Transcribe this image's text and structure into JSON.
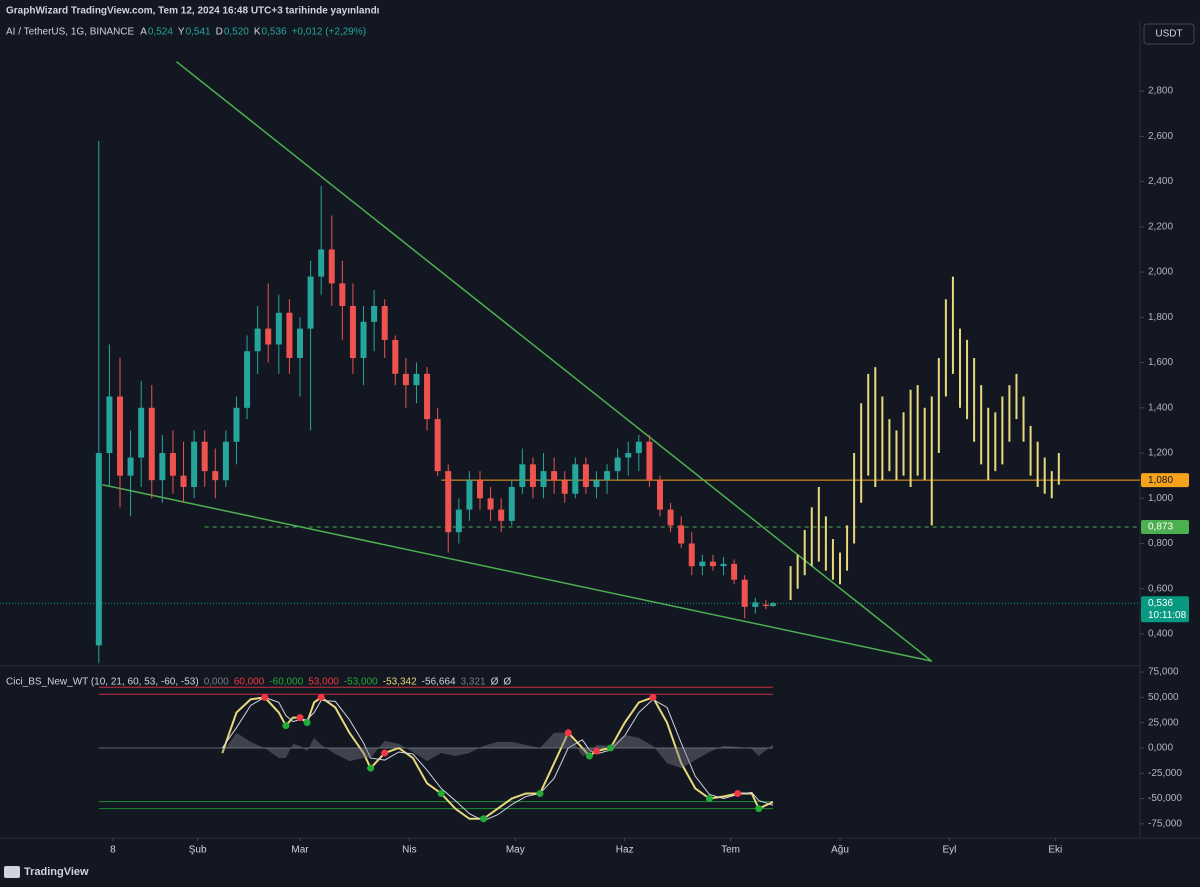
{
  "header": {
    "published": "GraphWizard TradingView.com, Tem 12, 2024 16:48 UTC+3 tarihinde yayınlandı",
    "brand": "TradingView"
  },
  "chart_data": {
    "type": "candlestick",
    "symbol": "AI / TetherUS, 1G, BINANCE",
    "currency": "USDT",
    "ohlc_legend": [
      {
        "key": "A",
        "value": 0.524,
        "label": "0,524"
      },
      {
        "key": "Y",
        "value": 0.541,
        "label": "0,541"
      },
      {
        "key": "D",
        "value": 0.52,
        "label": "0,520"
      },
      {
        "key": "K",
        "value": 0.536,
        "label": "0,536"
      }
    ],
    "change": "+0,012 (+2,29%)",
    "up_color": "#26a69a",
    "down_color": "#ef5350",
    "xlim": [
      -25,
      298
    ],
    "xticks": [
      {
        "value": 7,
        "label": "8"
      },
      {
        "value": 31,
        "label": "Şub"
      },
      {
        "value": 60,
        "label": "Mar"
      },
      {
        "value": 91,
        "label": "Nis"
      },
      {
        "value": 121,
        "label": "May"
      },
      {
        "value": 152,
        "label": "Haz"
      },
      {
        "value": 182,
        "label": "Tem"
      },
      {
        "value": 213,
        "label": "Ağu"
      },
      {
        "value": 244,
        "label": "Eyl"
      },
      {
        "value": 274,
        "label": "Eki"
      }
    ],
    "ylim": [
      0.263,
      3.017
    ],
    "yticks": [
      {
        "value": 0.4,
        "label": "0,400"
      },
      {
        "value": 0.6,
        "label": "0,600"
      },
      {
        "value": 0.8,
        "label": "0,800"
      },
      {
        "value": 1.0,
        "label": "1,000"
      },
      {
        "value": 1.2,
        "label": "1,200"
      },
      {
        "value": 1.4,
        "label": "1,400"
      },
      {
        "value": 1.6,
        "label": "1,600"
      },
      {
        "value": 1.8,
        "label": "1,800"
      },
      {
        "value": 2.0,
        "label": "2,000"
      },
      {
        "value": 2.2,
        "label": "2,200"
      },
      {
        "value": 2.4,
        "label": "2,400"
      },
      {
        "value": 2.6,
        "label": "2,600"
      },
      {
        "value": 2.8,
        "label": "2,800"
      }
    ],
    "candles": [
      [
        3,
        0.35,
        2.58,
        0.27,
        1.2
      ],
      [
        6,
        1.2,
        1.68,
        1.05,
        1.45
      ],
      [
        9,
        1.45,
        1.62,
        0.96,
        1.1
      ],
      [
        12,
        1.1,
        1.3,
        0.92,
        1.18
      ],
      [
        15,
        1.18,
        1.52,
        1.05,
        1.4
      ],
      [
        18,
        1.4,
        1.5,
        1.0,
        1.08
      ],
      [
        21,
        1.08,
        1.28,
        0.98,
        1.2
      ],
      [
        24,
        1.2,
        1.3,
        1.02,
        1.1
      ],
      [
        27,
        1.1,
        1.25,
        0.98,
        1.05
      ],
      [
        30,
        1.05,
        1.3,
        1.0,
        1.25
      ],
      [
        33,
        1.25,
        1.3,
        1.05,
        1.12
      ],
      [
        36,
        1.12,
        1.22,
        1.0,
        1.08
      ],
      [
        39,
        1.08,
        1.3,
        1.05,
        1.25
      ],
      [
        42,
        1.25,
        1.45,
        1.15,
        1.4
      ],
      [
        45,
        1.4,
        1.72,
        1.35,
        1.65
      ],
      [
        48,
        1.65,
        1.85,
        1.55,
        1.75
      ],
      [
        51,
        1.75,
        1.95,
        1.6,
        1.68
      ],
      [
        54,
        1.68,
        1.9,
        1.55,
        1.82
      ],
      [
        57,
        1.82,
        1.88,
        1.55,
        1.62
      ],
      [
        60,
        1.62,
        1.8,
        1.45,
        1.75
      ],
      [
        63,
        1.75,
        2.05,
        1.3,
        1.98
      ],
      [
        66,
        1.98,
        2.38,
        1.9,
        2.1
      ],
      [
        69,
        2.1,
        2.25,
        1.85,
        1.95
      ],
      [
        72,
        1.95,
        2.05,
        1.7,
        1.85
      ],
      [
        75,
        1.85,
        1.95,
        1.55,
        1.62
      ],
      [
        78,
        1.62,
        1.85,
        1.5,
        1.78
      ],
      [
        81,
        1.78,
        1.92,
        1.65,
        1.85
      ],
      [
        84,
        1.85,
        1.88,
        1.62,
        1.7
      ],
      [
        87,
        1.7,
        1.72,
        1.5,
        1.55
      ],
      [
        90,
        1.55,
        1.62,
        1.4,
        1.5
      ],
      [
        93,
        1.5,
        1.6,
        1.42,
        1.55
      ],
      [
        96,
        1.55,
        1.58,
        1.3,
        1.35
      ],
      [
        99,
        1.35,
        1.4,
        1.1,
        1.12
      ],
      [
        102,
        1.12,
        1.15,
        0.76,
        0.85
      ],
      [
        105,
        0.85,
        1.0,
        0.8,
        0.95
      ],
      [
        108,
        0.95,
        1.12,
        0.9,
        1.08
      ],
      [
        111,
        1.08,
        1.12,
        0.95,
        1.0
      ],
      [
        114,
        1.0,
        1.05,
        0.9,
        0.95
      ],
      [
        117,
        0.95,
        1.0,
        0.85,
        0.9
      ],
      [
        120,
        0.9,
        1.08,
        0.88,
        1.05
      ],
      [
        123,
        1.05,
        1.22,
        1.02,
        1.15
      ],
      [
        126,
        1.15,
        1.18,
        1.0,
        1.05
      ],
      [
        129,
        1.05,
        1.2,
        1.0,
        1.12
      ],
      [
        132,
        1.12,
        1.18,
        1.02,
        1.08
      ],
      [
        135,
        1.08,
        1.12,
        0.98,
        1.02
      ],
      [
        138,
        1.02,
        1.18,
        1.0,
        1.15
      ],
      [
        141,
        1.15,
        1.18,
        1.02,
        1.05
      ],
      [
        144,
        1.05,
        1.12,
        1.0,
        1.08
      ],
      [
        147,
        1.08,
        1.15,
        1.02,
        1.12
      ],
      [
        150,
        1.12,
        1.22,
        1.08,
        1.18
      ],
      [
        153,
        1.18,
        1.25,
        1.1,
        1.2
      ],
      [
        156,
        1.2,
        1.28,
        1.12,
        1.25
      ],
      [
        159,
        1.25,
        1.28,
        1.05,
        1.08
      ],
      [
        162,
        1.08,
        1.1,
        0.92,
        0.95
      ],
      [
        165,
        0.95,
        0.98,
        0.85,
        0.88
      ],
      [
        168,
        0.88,
        0.92,
        0.78,
        0.8
      ],
      [
        171,
        0.8,
        0.85,
        0.66,
        0.7
      ],
      [
        174,
        0.7,
        0.75,
        0.66,
        0.72
      ],
      [
        177,
        0.72,
        0.75,
        0.68,
        0.7
      ],
      [
        180,
        0.7,
        0.74,
        0.66,
        0.71
      ],
      [
        183,
        0.71,
        0.73,
        0.62,
        0.64
      ],
      [
        186,
        0.64,
        0.66,
        0.47,
        0.52
      ],
      [
        189,
        0.52,
        0.56,
        0.49,
        0.54
      ],
      [
        192,
        0.53,
        0.55,
        0.51,
        0.524
      ],
      [
        194,
        0.524,
        0.541,
        0.52,
        0.536
      ]
    ],
    "projection_color": "#e8d97a",
    "projection": [
      [
        199,
        0.55,
        0.7
      ],
      [
        201,
        0.6,
        0.75
      ],
      [
        203,
        0.66,
        0.86
      ],
      [
        205,
        0.7,
        0.96
      ],
      [
        207,
        0.72,
        1.05
      ],
      [
        209,
        0.68,
        0.92
      ],
      [
        211,
        0.64,
        0.82
      ],
      [
        213,
        0.62,
        0.76
      ],
      [
        215,
        0.68,
        0.88
      ],
      [
        217,
        0.8,
        1.2
      ],
      [
        219,
        0.98,
        1.42
      ],
      [
        221,
        1.1,
        1.55
      ],
      [
        223,
        1.05,
        1.58
      ],
      [
        225,
        1.08,
        1.45
      ],
      [
        227,
        1.12,
        1.35
      ],
      [
        229,
        1.08,
        1.3
      ],
      [
        231,
        1.1,
        1.38
      ],
      [
        233,
        1.05,
        1.48
      ],
      [
        235,
        1.1,
        1.5
      ],
      [
        237,
        1.08,
        1.4
      ],
      [
        239,
        0.88,
        1.45
      ],
      [
        241,
        1.2,
        1.62
      ],
      [
        243,
        1.45,
        1.88
      ],
      [
        245,
        1.55,
        1.98
      ],
      [
        247,
        1.4,
        1.75
      ],
      [
        249,
        1.35,
        1.7
      ],
      [
        251,
        1.25,
        1.62
      ],
      [
        253,
        1.15,
        1.5
      ],
      [
        255,
        1.08,
        1.4
      ],
      [
        257,
        1.12,
        1.38
      ],
      [
        259,
        1.15,
        1.45
      ],
      [
        261,
        1.25,
        1.5
      ],
      [
        263,
        1.35,
        1.55
      ],
      [
        265,
        1.25,
        1.45
      ],
      [
        267,
        1.1,
        1.32
      ],
      [
        269,
        1.05,
        1.25
      ],
      [
        271,
        1.02,
        1.18
      ],
      [
        273,
        1.0,
        1.12
      ],
      [
        275,
        1.06,
        1.2
      ]
    ],
    "trendline_color": "#4caf50",
    "trendlines": [
      [
        25,
        2.93,
        239,
        0.28
      ],
      [
        4,
        1.06,
        239,
        0.28
      ]
    ],
    "price_lines": [
      {
        "value": 1.08,
        "label": "1,080",
        "color": "#f7a21b",
        "from": 100,
        "style": "solid"
      },
      {
        "value": 0.873,
        "label": "0,873",
        "color": "#4caf50",
        "from": 33,
        "style": "dashed"
      },
      {
        "value": 0.536,
        "label": "0,536",
        "color": "#089981",
        "from": -25,
        "style": "dotted",
        "countdown": "10:11:08"
      }
    ],
    "oscillator": {
      "name": "Cici_BS_New_WT (10, 21, 60, 53, -60, -53)",
      "ylim": [
        -89000,
        79000
      ],
      "yticks": [
        {
          "value": 75000,
          "label": "75,000"
        },
        {
          "value": 50000,
          "label": "50,000"
        },
        {
          "value": 25000,
          "label": "25,000"
        },
        {
          "value": 0,
          "label": "0,000"
        },
        {
          "value": -25000,
          "label": "-25,000"
        },
        {
          "value": -50000,
          "label": "-50,000"
        },
        {
          "value": -75000,
          "label": "-75,000"
        }
      ],
      "levels": [
        {
          "value": 0,
          "label": "0,000",
          "color": "#787b86"
        },
        {
          "value": 60000,
          "label": "60,000",
          "color": "#f23645"
        },
        {
          "value": -60000,
          "label": "-60,000",
          "color": "#22ab37"
        },
        {
          "value": 53000,
          "label": "53,000",
          "color": "#f23645"
        },
        {
          "value": -53000,
          "label": "-53,000",
          "color": "#22ab37"
        }
      ],
      "x": [
        38,
        42,
        46,
        50,
        54,
        56,
        58,
        60,
        62,
        64,
        66,
        70,
        74,
        78,
        80,
        84,
        88,
        92,
        96,
        100,
        104,
        108,
        112,
        116,
        120,
        124,
        128,
        132,
        136,
        140,
        142,
        144,
        148,
        152,
        156,
        160,
        164,
        168,
        172,
        176,
        180,
        184,
        188,
        190,
        194
      ],
      "series": [
        {
          "color": "#e8d97a",
          "last_label": "-53,342",
          "values": [
            -5000,
            35000,
            48000,
            50000,
            35000,
            22000,
            30000,
            30000,
            25000,
            45000,
            50000,
            40000,
            15000,
            -5000,
            -20000,
            -5000,
            0,
            -10000,
            -35000,
            -45000,
            -60000,
            -70000,
            -70000,
            -60000,
            -50000,
            -45000,
            -45000,
            -15000,
            15000,
            0,
            -8000,
            -3000,
            0,
            25000,
            45000,
            50000,
            25000,
            -15000,
            -40000,
            -50000,
            -48000,
            -45000,
            -45000,
            -60000,
            -53342
          ]
        },
        {
          "color": "#d1d4dc",
          "last_label": "-56,664",
          "values": [
            0,
            20000,
            42000,
            50000,
            45000,
            32000,
            26000,
            28000,
            28000,
            35000,
            47000,
            46000,
            28000,
            5000,
            -10000,
            -12000,
            -4000,
            -6000,
            -22000,
            -40000,
            -52000,
            -65000,
            -72000,
            -66000,
            -56000,
            -48000,
            -45000,
            -30000,
            0,
            8000,
            -2000,
            -6000,
            -2000,
            12000,
            35000,
            48000,
            40000,
            5000,
            -28000,
            -46000,
            -50000,
            -46000,
            -44000,
            -52000,
            -56664
          ]
        },
        {
          "color": "#787b86",
          "last_label": "3,321",
          "area": true,
          "values": [
            -5000,
            15000,
            6000,
            0,
            -10000,
            -10000,
            4000,
            2000,
            -3000,
            10000,
            3000,
            -6000,
            -13000,
            -10000,
            -10000,
            7000,
            4000,
            -4000,
            -13000,
            -5000,
            -8000,
            -5000,
            2000,
            6000,
            6000,
            3000,
            0,
            15000,
            15000,
            -8000,
            -6000,
            3000,
            2000,
            13000,
            10000,
            2000,
            -15000,
            -20000,
            -12000,
            -4000,
            2000,
            1000,
            -1000,
            -8000,
            3321
          ]
        }
      ],
      "extra_legend": [
        "Ø",
        "Ø"
      ],
      "signals": [
        [
          50,
          50000,
          "#f23645"
        ],
        [
          56,
          22000,
          "#22ab37"
        ],
        [
          60,
          30000,
          "#f23645"
        ],
        [
          62,
          25000,
          "#22ab37"
        ],
        [
          66,
          50000,
          "#f23645"
        ],
        [
          80,
          -20000,
          "#22ab37"
        ],
        [
          84,
          -5000,
          "#f23645"
        ],
        [
          100,
          -45000,
          "#22ab37"
        ],
        [
          112,
          -70000,
          "#22ab37"
        ],
        [
          128,
          -45000,
          "#22ab37"
        ],
        [
          136,
          15000,
          "#f23645"
        ],
        [
          142,
          -8000,
          "#22ab37"
        ],
        [
          144,
          -3000,
          "#f23645"
        ],
        [
          148,
          0,
          "#22ab37"
        ],
        [
          160,
          50000,
          "#f23645"
        ],
        [
          176,
          -50000,
          "#22ab37"
        ],
        [
          184,
          -45000,
          "#f23645"
        ],
        [
          190,
          -60000,
          "#22ab37"
        ]
      ]
    }
  }
}
